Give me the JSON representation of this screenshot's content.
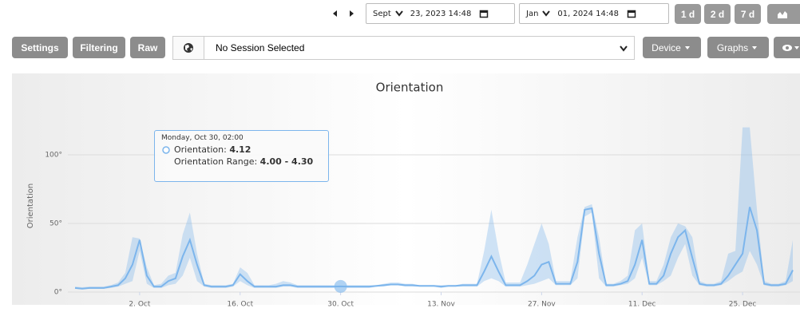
{
  "toolbar": {
    "date_from": {
      "month": "Sept",
      "rest": "23, 2023 14:48"
    },
    "date_to": {
      "month": "Jan",
      "rest": "01, 2024 14:48"
    },
    "range_buttons": [
      "1 d",
      "2 d",
      "7 d"
    ],
    "buttons": [
      "Settings",
      "Filtering",
      "Raw"
    ],
    "session": "No Session Selected",
    "dropdowns": [
      "Device",
      "Graphs"
    ]
  },
  "chart_data": {
    "type": "line",
    "title": "Orientation",
    "y_label": "Orientation",
    "x": [
      "2023-09-23",
      "2023-09-24",
      "2023-09-25",
      "2023-09-26",
      "2023-09-27",
      "2023-09-28",
      "2023-09-29",
      "2023-09-30",
      "2023-10-01",
      "2023-10-02",
      "2023-10-03",
      "2023-10-04",
      "2023-10-05",
      "2023-10-06",
      "2023-10-07",
      "2023-10-08",
      "2023-10-09",
      "2023-10-10",
      "2023-10-11",
      "2023-10-12",
      "2023-10-13",
      "2023-10-14",
      "2023-10-15",
      "2023-10-16",
      "2023-10-17",
      "2023-10-18",
      "2023-10-19",
      "2023-10-20",
      "2023-10-21",
      "2023-10-22",
      "2023-10-23",
      "2023-10-24",
      "2023-10-25",
      "2023-10-26",
      "2023-10-27",
      "2023-10-28",
      "2023-10-29",
      "2023-10-30",
      "2023-10-31",
      "2023-11-01",
      "2023-11-02",
      "2023-11-03",
      "2023-11-04",
      "2023-11-05",
      "2023-11-06",
      "2023-11-07",
      "2023-11-08",
      "2023-11-09",
      "2023-11-10",
      "2023-11-11",
      "2023-11-12",
      "2023-11-13",
      "2023-11-14",
      "2023-11-15",
      "2023-11-16",
      "2023-11-17",
      "2023-11-18",
      "2023-11-19",
      "2023-11-20",
      "2023-11-21",
      "2023-11-22",
      "2023-11-23",
      "2023-11-24",
      "2023-11-25",
      "2023-11-26",
      "2023-11-27",
      "2023-11-28",
      "2023-11-29",
      "2023-11-30",
      "2023-12-01",
      "2023-12-02",
      "2023-12-03",
      "2023-12-04",
      "2023-12-05",
      "2023-12-06",
      "2023-12-07",
      "2023-12-08",
      "2023-12-09",
      "2023-12-10",
      "2023-12-11",
      "2023-12-12",
      "2023-12-13",
      "2023-12-14",
      "2023-12-15",
      "2023-12-16",
      "2023-12-17",
      "2023-12-18",
      "2023-12-19",
      "2023-12-20",
      "2023-12-21",
      "2023-12-22",
      "2023-12-23",
      "2023-12-24",
      "2023-12-25",
      "2023-12-26",
      "2023-12-27",
      "2023-12-28",
      "2023-12-29",
      "2023-12-30",
      "2023-12-31",
      "2024-01-01"
    ],
    "series": [
      {
        "name": "Orientation",
        "color": "#7cb5ec",
        "values": [
          3,
          2.5,
          3,
          3,
          3,
          4,
          5,
          10,
          20,
          38,
          12,
          4,
          4,
          8,
          10,
          26,
          38,
          20,
          5,
          4,
          4,
          4,
          5,
          13,
          8,
          4,
          4,
          4,
          4,
          5,
          5,
          4,
          4,
          4,
          4,
          4,
          4,
          4.12,
          4,
          4,
          4,
          4,
          4.5,
          5,
          5.5,
          5.5,
          5,
          5,
          4.5,
          4.5,
          4.5,
          4,
          4.5,
          4.5,
          5,
          5,
          5,
          15,
          26,
          15,
          5,
          5,
          5,
          8,
          12,
          20,
          22,
          6,
          6,
          6,
          22,
          60,
          61,
          28,
          5,
          5,
          6,
          8,
          20,
          38,
          6,
          6,
          12,
          28,
          40,
          45,
          25,
          6,
          5,
          5,
          6,
          12,
          20,
          28,
          62,
          45,
          6,
          5,
          5,
          6,
          16
        ]
      }
    ],
    "range": {
      "name": "Orientation Range",
      "color": "#7cb5ec",
      "low": [
        2.5,
        2,
        2.5,
        2.5,
        2.5,
        3,
        4,
        6,
        8,
        30,
        6,
        3,
        3,
        5,
        6,
        12,
        25,
        8,
        4,
        3,
        3,
        3,
        4,
        8,
        5,
        3,
        3,
        3,
        3,
        4,
        4,
        3,
        3,
        3,
        3,
        3,
        3,
        4,
        3,
        3,
        3,
        3,
        4,
        4,
        5,
        5,
        4,
        4,
        4,
        4,
        4,
        3,
        4,
        4,
        4,
        4,
        4,
        8,
        10,
        8,
        4,
        4,
        4,
        5,
        6,
        8,
        10,
        5,
        5,
        5,
        10,
        55,
        58,
        10,
        4,
        4,
        5,
        6,
        10,
        25,
        5,
        5,
        8,
        12,
        25,
        35,
        12,
        5,
        4,
        4,
        5,
        8,
        12,
        15,
        30,
        20,
        5,
        4,
        4,
        5,
        8
      ],
      "high": [
        4,
        3.5,
        4,
        4,
        4,
        5,
        7,
        14,
        40,
        39,
        18,
        5,
        6,
        12,
        14,
        42,
        58,
        28,
        6,
        5,
        5,
        5,
        6,
        18,
        14,
        5,
        5,
        5,
        6,
        8,
        7,
        5,
        5,
        5,
        5,
        5,
        5,
        4.3,
        5,
        5,
        5,
        5,
        5,
        6,
        7,
        7,
        6,
        6,
        5,
        5,
        5,
        5,
        5,
        5,
        6,
        6,
        6,
        30,
        60,
        30,
        7,
        7,
        7,
        20,
        35,
        50,
        35,
        8,
        8,
        8,
        40,
        62,
        64,
        40,
        6,
        6,
        8,
        12,
        45,
        50,
        8,
        8,
        20,
        40,
        50,
        48,
        40,
        8,
        6,
        6,
        8,
        28,
        30,
        120,
        120,
        60,
        8,
        6,
        6,
        8,
        38
      ]
    },
    "xlim": [
      "2023-09-22",
      "2024-01-02"
    ],
    "xticks": [
      {
        "value": "2023-10-02",
        "label": "2. Oct"
      },
      {
        "value": "2023-10-16",
        "label": "16. Oct"
      },
      {
        "value": "2023-10-30",
        "label": "30. Oct"
      },
      {
        "value": "2023-11-13",
        "label": "13. Nov"
      },
      {
        "value": "2023-11-27",
        "label": "27. Nov"
      },
      {
        "value": "2023-12-11",
        "label": "11. Dec"
      },
      {
        "value": "2023-12-25",
        "label": "25. Dec"
      }
    ],
    "ylim": [
      0,
      125
    ],
    "yticks": [
      {
        "value": 0,
        "label": "0°"
      },
      {
        "value": 50,
        "label": "50°"
      },
      {
        "value": 100,
        "label": "100°"
      }
    ],
    "grid": true,
    "tooltip": {
      "header": "Monday, Oct 30, 02:00",
      "lines": [
        {
          "label": "Orientation:",
          "value": "4.12"
        },
        {
          "label": "Orientation Range:",
          "value": "4.00 - 4.30"
        }
      ]
    }
  }
}
